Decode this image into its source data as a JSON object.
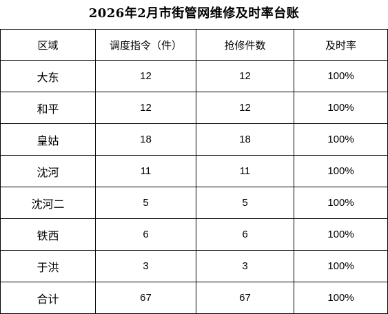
{
  "title": "2026年2月市街管网维修及时率台账",
  "table": {
    "headers": [
      "区域",
      "调度指令（件）",
      "抢修件数",
      "及时率"
    ],
    "rows": [
      {
        "region": "大东",
        "dispatch": "12",
        "repairs": "12",
        "rate": "100%"
      },
      {
        "region": "和平",
        "dispatch": "12",
        "repairs": "12",
        "rate": "100%"
      },
      {
        "region": "皇姑",
        "dispatch": "18",
        "repairs": "18",
        "rate": "100%"
      },
      {
        "region": "沈河",
        "dispatch": "11",
        "repairs": "11",
        "rate": "100%"
      },
      {
        "region": "沈河二",
        "dispatch": "5",
        "repairs": "5",
        "rate": "100%"
      },
      {
        "region": "铁西",
        "dispatch": "6",
        "repairs": "6",
        "rate": "100%"
      },
      {
        "region": "于洪",
        "dispatch": "3",
        "repairs": "3",
        "rate": "100%"
      },
      {
        "region": "合计",
        "dispatch": "67",
        "repairs": "67",
        "rate": "100%"
      }
    ]
  }
}
